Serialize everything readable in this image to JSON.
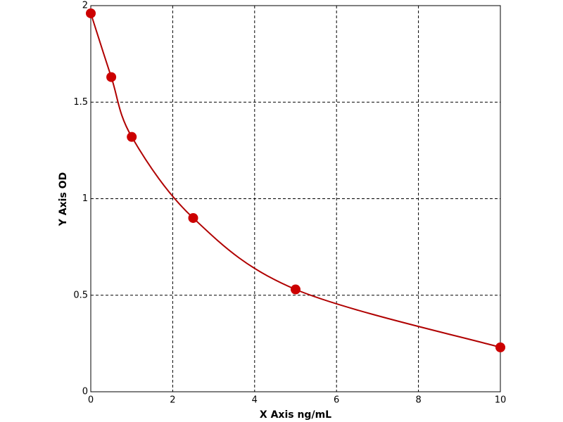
{
  "chart_data": {
    "type": "line",
    "x_label": "X Axis ng/mL",
    "y_label": "Y Axis OD",
    "x": [
      0,
      0.5,
      1,
      2.5,
      5,
      10
    ],
    "series": [
      {
        "color": "#cc0000",
        "values": [
          1.96,
          1.63,
          1.32,
          0.9,
          0.53,
          0.23
        ]
      }
    ],
    "xlim": [
      0,
      10
    ],
    "xticks": [
      0,
      2,
      4,
      6,
      8,
      10
    ],
    "ylim": [
      0,
      2
    ],
    "yticks": [
      0,
      0.5,
      1,
      1.5,
      2
    ],
    "grid": true,
    "markers": true
  }
}
